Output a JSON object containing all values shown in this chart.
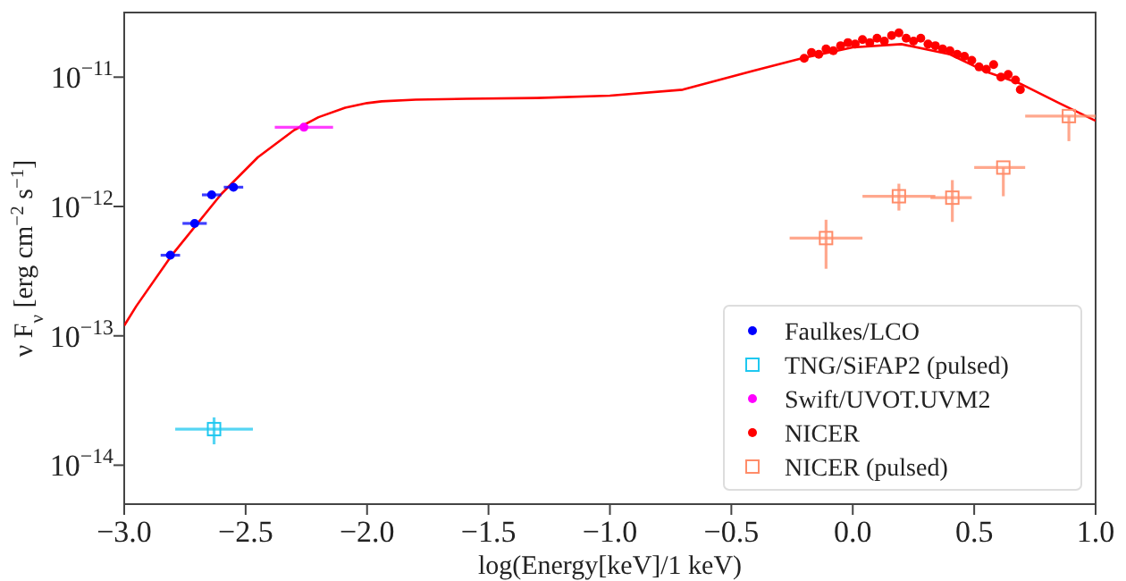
{
  "chart_data": {
    "type": "scatter",
    "xlabel": "log(Energy[keV]/1 keV)",
    "ylabel": "ν F$_{ν}$ [erg cm$^{−2}$ s$^{−1}$]",
    "log": "y",
    "xlim": [
      -3.0,
      1.0
    ],
    "ylim": [
      5e-15,
      3.16e-11
    ],
    "xticks": [
      {
        "value": -3.0,
        "label": "−3.0"
      },
      {
        "value": -2.5,
        "label": "−2.5"
      },
      {
        "value": -2.0,
        "label": "−2.0"
      },
      {
        "value": -1.5,
        "label": "−1.5"
      },
      {
        "value": -1.0,
        "label": "−1.0"
      },
      {
        "value": -0.5,
        "label": "−0.5"
      },
      {
        "value": 0.0,
        "label": "0.0"
      },
      {
        "value": 0.5,
        "label": "0.5"
      },
      {
        "value": 1.0,
        "label": "1.0"
      }
    ],
    "yticks": [
      {
        "value": 1e-14,
        "label": "10$^{−14}$"
      },
      {
        "value": 1e-13,
        "label": "10$^{−13}$"
      },
      {
        "value": 1e-12,
        "label": "10$^{−12}$"
      },
      {
        "value": 1e-11,
        "label": "10$^{−11}$"
      }
    ],
    "grid": false,
    "legend": "bottom right",
    "series": [
      {
        "type": "line",
        "color": "#ff0000",
        "marker": "none",
        "line_style": "solid",
        "x": [
          -3.0,
          -2.95,
          -2.8,
          -2.6,
          -2.45,
          -2.3,
          -2.2,
          -2.09,
          -2.0,
          -1.94,
          -1.8,
          -1.59,
          -1.3,
          -1.0,
          -0.7,
          -0.41,
          -0.21,
          0.0,
          0.2,
          0.4,
          0.55,
          0.69,
          0.85,
          1.0
        ],
        "values": [
          1.2e-13,
          1.7e-13,
          4.3e-13,
          1.25e-12,
          2.4e-12,
          3.9e-12,
          4.9e-12,
          5.8e-12,
          6.3e-12,
          6.5e-12,
          6.7e-12,
          6.8e-12,
          6.9e-12,
          7.2e-12,
          8e-12,
          1.12e-11,
          1.4e-11,
          1.7e-11,
          1.8e-11,
          1.5e-11,
          1.1e-11,
          8.9e-12,
          6.3e-12,
          4.6e-12
        ]
      },
      {
        "name": "Faulkes/LCO",
        "marker": "circle",
        "color": "#0000ff",
        "x": [
          -2.81,
          -2.71,
          -2.64,
          -2.55
        ],
        "values": [
          4.2e-13,
          7.4e-13,
          1.23e-12,
          1.41e-12
        ],
        "xerrors": [
          0.04,
          0.05,
          0.04,
          0.04
        ]
      },
      {
        "name": "TNG/SiFAP2 (pulsed)",
        "marker": "square",
        "color": "#1ec8f0",
        "x": [
          -2.63
        ],
        "values": [
          1.9e-14
        ],
        "xerrors": [
          0.16
        ],
        "errors": [
          [
            1.45e-14,
            2.34e-14
          ]
        ]
      },
      {
        "name": "Swift/UVOT.UVM2",
        "marker": "circle",
        "color": "#ff00ff",
        "x": [
          -2.26
        ],
        "values": [
          4.1e-12
        ],
        "xerrors": [
          0.12
        ]
      },
      {
        "name": "NICER",
        "marker": "circle",
        "color": "#ff0000",
        "x": [
          -0.2,
          -0.17,
          -0.14,
          -0.11,
          -0.08,
          -0.05,
          -0.02,
          0.01,
          0.04,
          0.07,
          0.1,
          0.13,
          0.16,
          0.19,
          0.22,
          0.25,
          0.28,
          0.31,
          0.34,
          0.37,
          0.4,
          0.43,
          0.46,
          0.49,
          0.52,
          0.55,
          0.58,
          0.61,
          0.64,
          0.67,
          0.69
        ],
        "values": [
          1.4e-11,
          1.55e-11,
          1.5e-11,
          1.65e-11,
          1.6e-11,
          1.75e-11,
          1.85e-11,
          1.8e-11,
          1.95e-11,
          1.85e-11,
          2e-11,
          1.9e-11,
          2.1e-11,
          2.2e-11,
          2e-11,
          1.9e-11,
          2e-11,
          1.8e-11,
          1.75e-11,
          1.65e-11,
          1.6e-11,
          1.5e-11,
          1.45e-11,
          1.35e-11,
          1.2e-11,
          1.15e-11,
          1.25e-11,
          1e-11,
          1.05e-11,
          9.5e-12,
          8e-12
        ]
      },
      {
        "name": "NICER (pulsed)",
        "marker": "square",
        "color": "#ff8c69",
        "x": [
          -0.11,
          0.19,
          0.41,
          0.62,
          0.89
        ],
        "values": [
          5.7e-13,
          1.2e-12,
          1.17e-12,
          2e-12,
          5e-12
        ],
        "xerrors": [
          0.15,
          0.15,
          [
            0.32,
            0.49
          ],
          [
            0.5,
            0.71
          ],
          [
            0.71,
            1.0
          ]
        ],
        "errors": [
          [
            3.3e-13,
            7.9e-13
          ],
          [
            9.3e-13,
            1.5e-12
          ],
          [
            7.6e-13,
            1.6e-12
          ],
          [
            1.2e-12,
            2e-12
          ],
          [
            3.2e-12,
            5e-12
          ]
        ]
      }
    ]
  }
}
